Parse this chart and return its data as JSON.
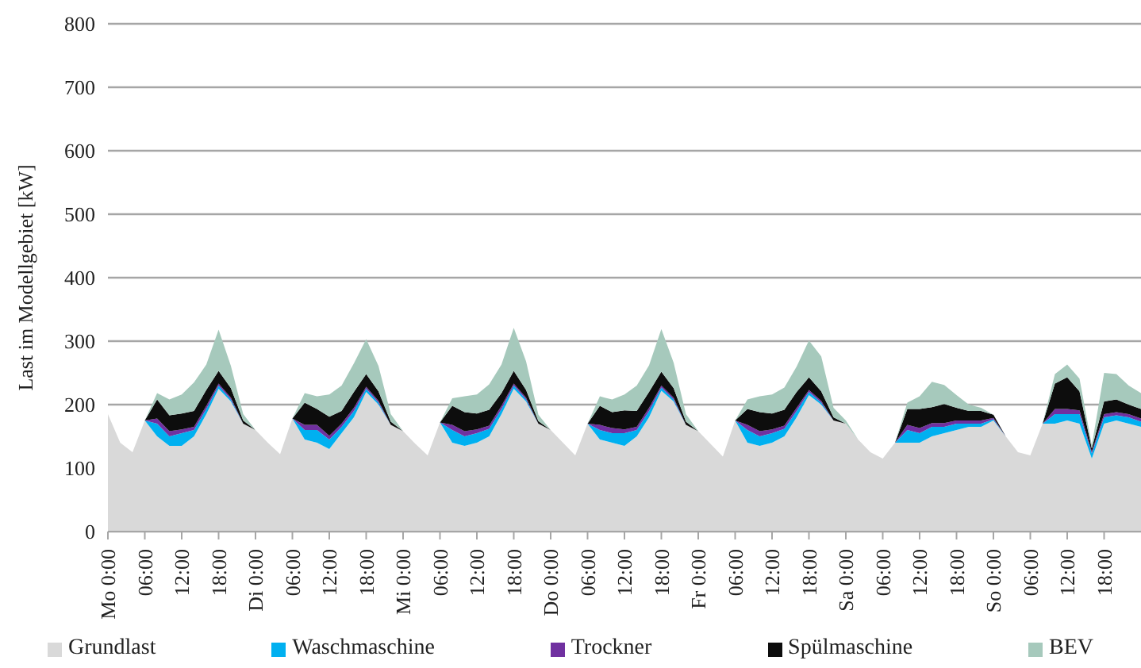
{
  "chart_data": {
    "type": "area",
    "stacked": true,
    "ylabel": "Last im Modellgebiet [kW]",
    "ylim": [
      0,
      800
    ],
    "yticks": [
      0,
      100,
      200,
      300,
      400,
      500,
      600,
      700,
      800
    ],
    "grid": "y",
    "legend": "bottom",
    "categories": [
      "Mo 0:00",
      null,
      null,
      "06:00",
      null,
      null,
      "12:00",
      null,
      null,
      "18:00",
      null,
      null,
      "Di 0:00",
      null,
      null,
      "06:00",
      null,
      null,
      "12:00",
      null,
      null,
      "18:00",
      null,
      null,
      "Mi 0:00",
      null,
      null,
      "06:00",
      null,
      null,
      "12:00",
      null,
      null,
      "18:00",
      null,
      null,
      "Do 0:00",
      null,
      null,
      "06:00",
      null,
      null,
      "12:00",
      null,
      null,
      "18:00",
      null,
      null,
      "Fr 0:00",
      null,
      null,
      "06:00",
      null,
      null,
      "12:00",
      null,
      null,
      "18:00",
      null,
      null,
      "Sa 0:00",
      null,
      null,
      "06:00",
      null,
      null,
      "12:00",
      null,
      null,
      "18:00",
      null,
      null,
      "So 0:00",
      null,
      null,
      "06:00",
      null,
      null,
      "12:00",
      null,
      null,
      "18:00",
      null,
      null,
      null
    ],
    "series": [
      {
        "name": "Grundlast",
        "color": "#d9d9d9",
        "values": [
          185,
          140,
          125,
          175,
          150,
          135,
          135,
          150,
          185,
          225,
          205,
          170,
          160,
          140,
          122,
          178,
          145,
          140,
          130,
          155,
          180,
          220,
          200,
          168,
          158,
          138,
          120,
          172,
          140,
          135,
          140,
          150,
          185,
          225,
          205,
          170,
          160,
          140,
          120,
          170,
          145,
          140,
          135,
          150,
          180,
          222,
          205,
          168,
          158,
          138,
          118,
          175,
          140,
          135,
          140,
          150,
          180,
          215,
          200,
          175,
          170,
          145,
          125,
          115,
          140,
          140,
          140,
          150,
          155,
          160,
          165,
          165,
          175,
          150,
          125,
          120,
          170,
          170,
          175,
          170,
          115,
          170,
          175,
          170,
          165
        ]
      },
      {
        "name": "Waschmaschine",
        "color": "#00b0f0",
        "values": [
          0,
          0,
          0,
          0,
          20,
          15,
          20,
          10,
          8,
          5,
          3,
          0,
          0,
          0,
          0,
          0,
          15,
          20,
          15,
          10,
          10,
          5,
          3,
          0,
          0,
          0,
          0,
          0,
          20,
          15,
          15,
          12,
          8,
          5,
          3,
          0,
          0,
          0,
          0,
          0,
          15,
          15,
          20,
          10,
          10,
          5,
          3,
          0,
          0,
          0,
          0,
          0,
          20,
          15,
          15,
          12,
          10,
          5,
          3,
          0,
          0,
          0,
          0,
          0,
          0,
          20,
          15,
          15,
          10,
          10,
          5,
          5,
          2,
          0,
          0,
          0,
          0,
          15,
          10,
          15,
          8,
          10,
          8,
          10,
          8
        ]
      },
      {
        "name": "Trockner",
        "color": "#7030a0",
        "values": [
          0,
          0,
          0,
          0,
          8,
          8,
          6,
          5,
          5,
          3,
          3,
          0,
          0,
          0,
          0,
          0,
          8,
          8,
          6,
          5,
          5,
          3,
          3,
          0,
          0,
          0,
          0,
          0,
          8,
          8,
          6,
          5,
          5,
          3,
          3,
          0,
          0,
          0,
          0,
          0,
          8,
          8,
          6,
          5,
          5,
          3,
          3,
          0,
          0,
          0,
          0,
          0,
          8,
          8,
          6,
          5,
          5,
          3,
          3,
          0,
          0,
          0,
          0,
          0,
          0,
          8,
          8,
          6,
          6,
          5,
          5,
          5,
          2,
          0,
          0,
          0,
          0,
          8,
          8,
          6,
          3,
          5,
          5,
          5,
          5
        ]
      },
      {
        "name": "Spülmaschine",
        "color": "#0d0d0d",
        "values": [
          0,
          0,
          0,
          0,
          30,
          25,
          25,
          25,
          25,
          20,
          15,
          5,
          0,
          0,
          0,
          0,
          35,
          25,
          30,
          20,
          25,
          20,
          15,
          5,
          0,
          0,
          0,
          0,
          30,
          30,
          25,
          25,
          20,
          20,
          12,
          4,
          0,
          0,
          0,
          0,
          30,
          25,
          30,
          25,
          25,
          22,
          15,
          5,
          0,
          0,
          0,
          0,
          25,
          30,
          25,
          25,
          25,
          20,
          15,
          5,
          0,
          0,
          0,
          0,
          0,
          25,
          30,
          25,
          30,
          20,
          15,
          15,
          5,
          0,
          0,
          0,
          0,
          40,
          50,
          30,
          5,
          20,
          20,
          15,
          15
        ]
      },
      {
        "name": "BEV",
        "color": "#a6c9bc",
        "values": [
          0,
          0,
          0,
          0,
          10,
          25,
          30,
          45,
          40,
          65,
          35,
          10,
          0,
          0,
          0,
          0,
          15,
          20,
          35,
          40,
          45,
          55,
          40,
          12,
          0,
          0,
          0,
          0,
          12,
          25,
          30,
          40,
          45,
          68,
          45,
          10,
          0,
          0,
          0,
          0,
          15,
          20,
          25,
          40,
          42,
          67,
          40,
          12,
          0,
          0,
          0,
          0,
          15,
          25,
          30,
          35,
          40,
          58,
          55,
          15,
          5,
          0,
          0,
          0,
          0,
          10,
          20,
          40,
          30,
          20,
          10,
          5,
          0,
          0,
          0,
          0,
          0,
          15,
          20,
          20,
          5,
          45,
          40,
          30,
          25
        ]
      }
    ]
  }
}
